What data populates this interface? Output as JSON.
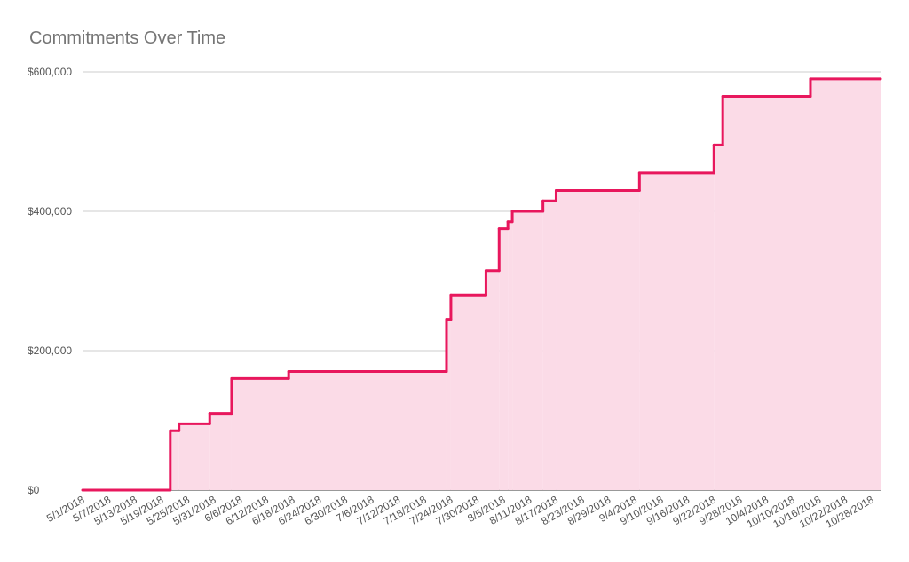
{
  "chart_data": {
    "type": "area",
    "step": true,
    "grid": true,
    "title": "Commitments Over Time",
    "line_color": "#e8175d",
    "fill_color": "#fbdbe7",
    "x": [
      "5/1/2018",
      "5/21/2018",
      "5/23/2018",
      "5/30/2018",
      "6/4/2018",
      "6/17/2018",
      "7/23/2018",
      "7/24/2018",
      "8/1/2018",
      "8/4/2018",
      "8/6/2018",
      "8/7/2018",
      "8/14/2018",
      "8/17/2018",
      "9/5/2018",
      "9/22/2018",
      "9/24/2018",
      "10/14/2018"
    ],
    "values": [
      0,
      85000,
      95000,
      110000,
      160000,
      170000,
      245000,
      280000,
      315000,
      375000,
      385000,
      400000,
      415000,
      430000,
      455000,
      495000,
      565000,
      590000
    ],
    "xlim": [
      "5/1/2018",
      "10/30/2018"
    ],
    "xticks": [
      "5/1/2018",
      "5/7/2018",
      "5/13/2018",
      "5/19/2018",
      "5/25/2018",
      "5/31/2018",
      "6/6/2018",
      "6/12/2018",
      "6/18/2018",
      "6/24/2018",
      "6/30/2018",
      "7/6/2018",
      "7/12/2018",
      "7/18/2018",
      "7/24/2018",
      "7/30/2018",
      "8/5/2018",
      "8/11/2018",
      "8/17/2018",
      "8/23/2018",
      "8/29/2018",
      "9/4/2018",
      "9/10/2018",
      "9/16/2018",
      "9/22/2018",
      "9/28/2018",
      "10/4/2018",
      "10/10/2018",
      "10/16/2018",
      "10/22/2018",
      "10/28/2018"
    ],
    "ylim": [
      0,
      600000
    ],
    "yticks": [
      {
        "value": 0,
        "label": "$0"
      },
      {
        "value": 200000,
        "label": "$200,000"
      },
      {
        "value": 400000,
        "label": "$400,000"
      },
      {
        "value": 600000,
        "label": "$600,000"
      }
    ]
  }
}
